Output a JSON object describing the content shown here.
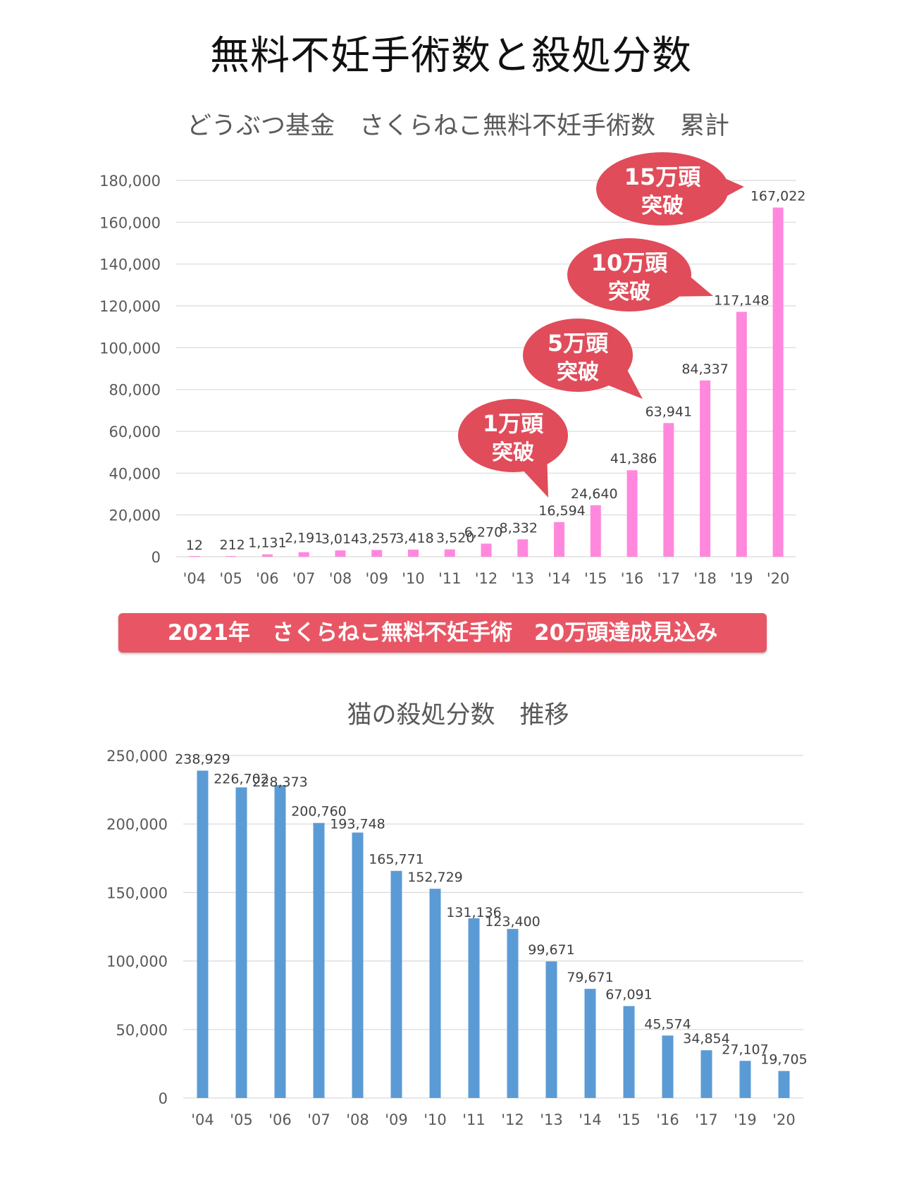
{
  "page": {
    "title": "無料不妊手術数と殺処分数"
  },
  "banner": {
    "text": "2021年　さくらねこ無料不妊手術　20万頭達成見込み"
  },
  "colors": {
    "chart1_bar": "#ff88dd",
    "chart2_bar": "#5b9bd5",
    "bubble": "#e04c5a",
    "banner": "#e85665",
    "grid": "#d9d9d9",
    "axis_text": "#595959"
  },
  "chart_data": [
    {
      "type": "bar",
      "title": "どうぶつ基金　さくらねこ無料不妊手術数　累計",
      "categories": [
        "'04",
        "'05",
        "'06",
        "'07",
        "'08",
        "'09",
        "'10",
        "'11",
        "'12",
        "'13",
        "'14",
        "'15",
        "'16",
        "'17",
        "'18",
        "'19",
        "'20"
      ],
      "values": [
        12,
        212,
        1131,
        2191,
        3014,
        3257,
        3418,
        3520,
        6270,
        8332,
        16594,
        24640,
        41386,
        63941,
        84337,
        117148,
        167022
      ],
      "value_labels": [
        "12",
        "212",
        "1,131",
        "2,191",
        "3,014",
        "3,257",
        "3,418",
        "3,520",
        "6,270",
        "8,332",
        "16,594",
        "24,640",
        "41,386",
        "63,941",
        "84,337",
        "117,148",
        "167,022"
      ],
      "yticks": [
        0,
        20000,
        40000,
        60000,
        80000,
        100000,
        120000,
        140000,
        160000,
        180000
      ],
      "ytick_labels": [
        "0",
        "20,000",
        "40,000",
        "60,000",
        "80,000",
        "100,000",
        "120,000",
        "140,000",
        "160,000",
        "180,000"
      ],
      "ylim": [
        0,
        180000
      ],
      "annotations": [
        {
          "line1": "1万頭",
          "line2": "突破",
          "category": "'14"
        },
        {
          "line1": "5万頭",
          "line2": "突破",
          "category": "'17"
        },
        {
          "line1": "10万頭",
          "line2": "突破",
          "category": "'19"
        },
        {
          "line1": "15万頭",
          "line2": "突破",
          "category": "'20"
        }
      ]
    },
    {
      "type": "bar",
      "title": "猫の殺処分数　推移",
      "categories": [
        "'04",
        "'05",
        "'06",
        "'07",
        "'08",
        "'09",
        "'10",
        "'11",
        "'12",
        "'13",
        "'14",
        "'15",
        "'16",
        "'17",
        "'19",
        "'20"
      ],
      "values": [
        238929,
        226702,
        228373,
        200760,
        193748,
        165771,
        152729,
        131136,
        123400,
        99671,
        79671,
        67091,
        45574,
        34854,
        27107,
        19705
      ],
      "value_labels": [
        "238,929",
        "226,702",
        "228,373",
        "200,760",
        "193,748",
        "165,771",
        "152,729",
        "131,136",
        "123,400",
        "99,671",
        "79,671",
        "67,091",
        "45,574",
        "34,854",
        "27,107",
        "19,705"
      ],
      "yticks": [
        0,
        50000,
        100000,
        150000,
        200000,
        250000
      ],
      "ytick_labels": [
        "0",
        "50,000",
        "100,000",
        "150,000",
        "200,000",
        "250,000"
      ],
      "ylim": [
        0,
        250000
      ]
    }
  ]
}
